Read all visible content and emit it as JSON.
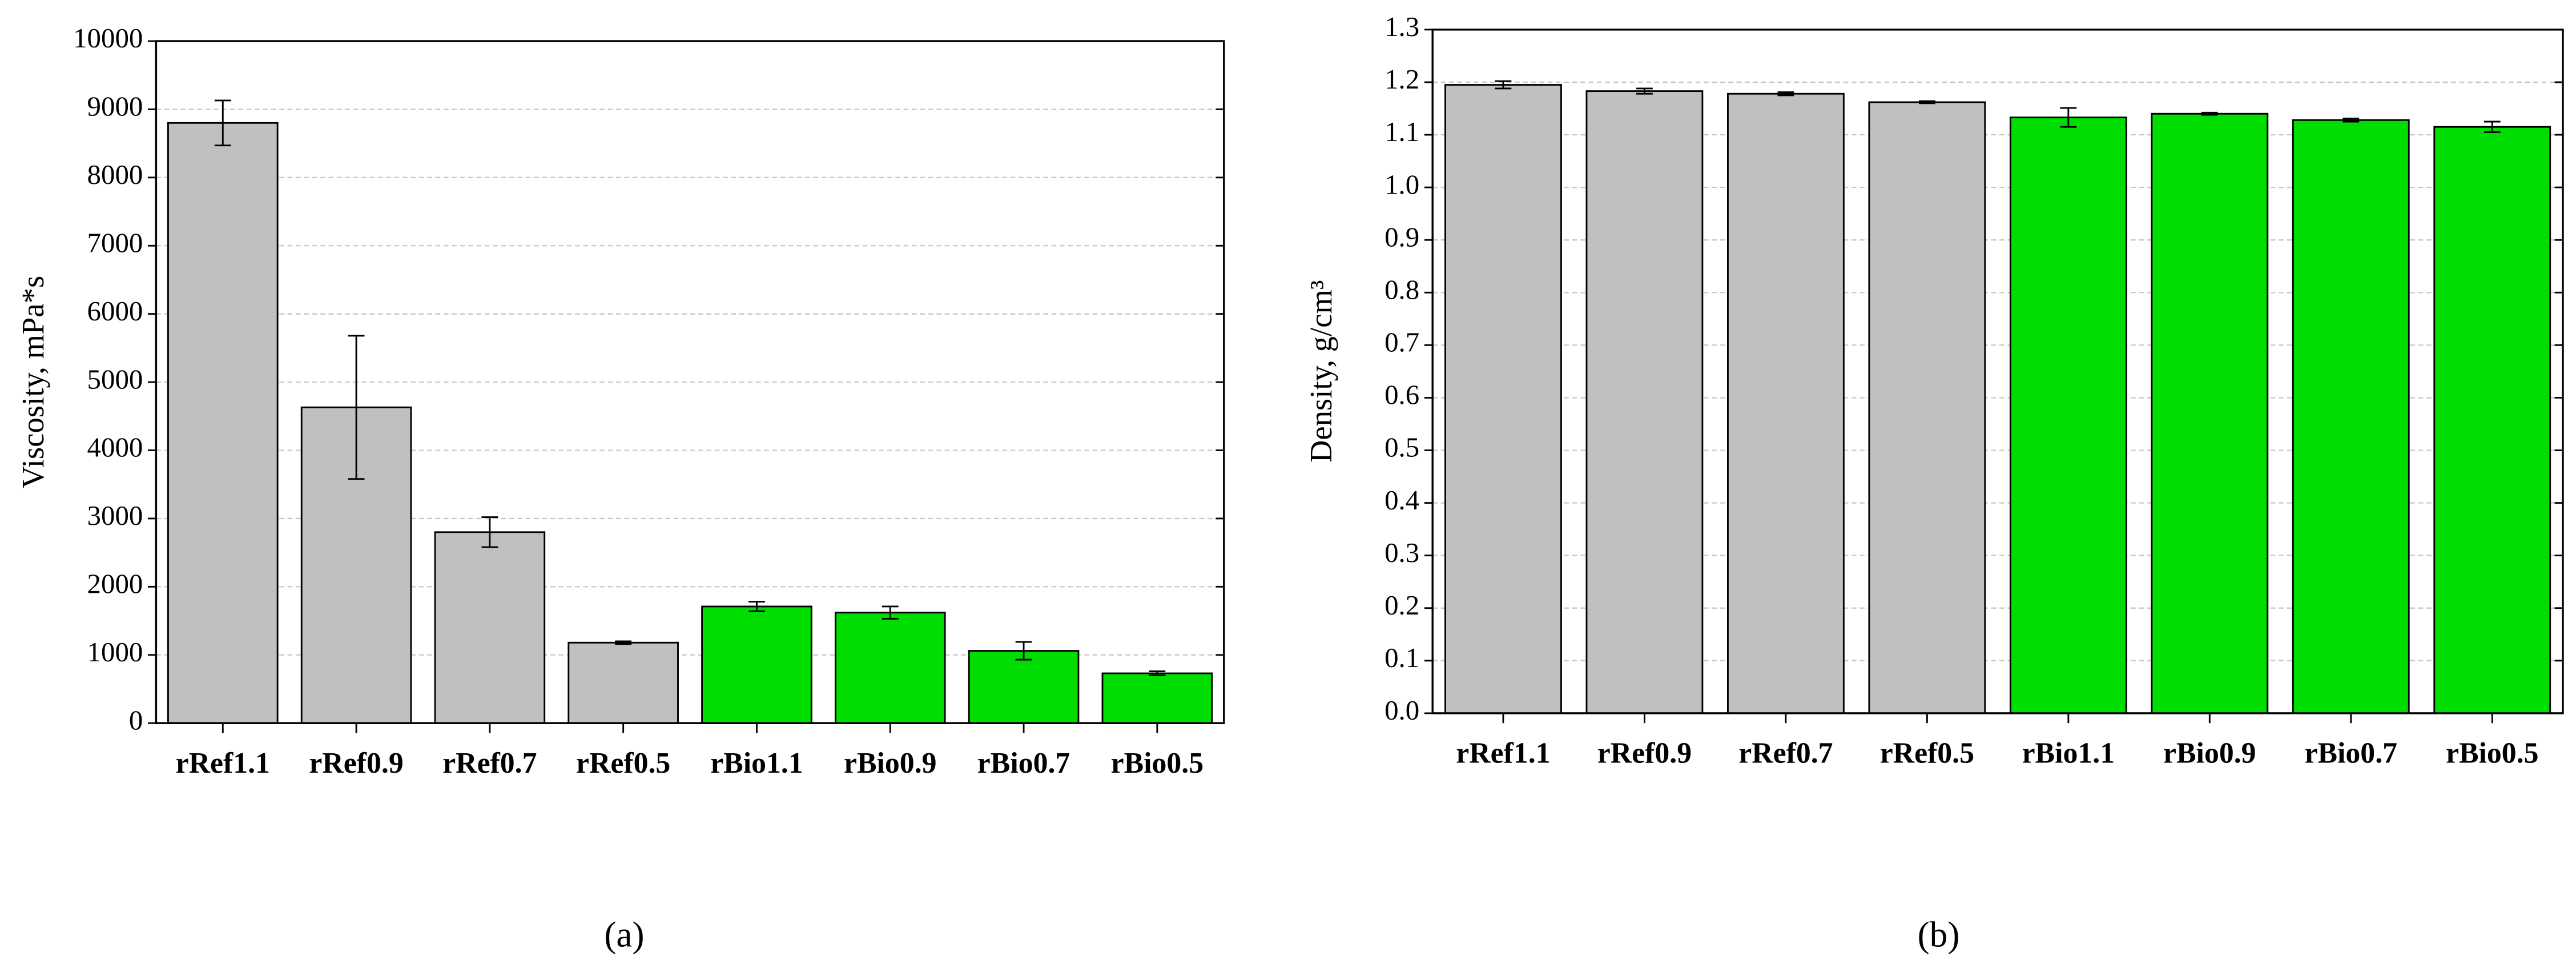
{
  "chart_data": [
    {
      "type": "bar",
      "caption": "(a)",
      "ylabel": "Viscosity, mPa*s",
      "categories": [
        "rRef1.1",
        "rRef0.9",
        "rRef0.7",
        "rRef0.5",
        "rBio1.1",
        "rBio0.9",
        "rBio0.7",
        "rBio0.5"
      ],
      "values": [
        8800,
        4630,
        2800,
        1180,
        1710,
        1620,
        1060,
        730
      ],
      "errors": [
        330,
        1050,
        220,
        20,
        70,
        90,
        130,
        30
      ],
      "colors": [
        "#c0c0c0",
        "#c0c0c0",
        "#c0c0c0",
        "#c0c0c0",
        "#00dd00",
        "#00dd00",
        "#00dd00",
        "#00dd00"
      ],
      "ylim": [
        0,
        10000
      ],
      "yticks": [
        0,
        1000,
        2000,
        3000,
        4000,
        5000,
        6000,
        7000,
        8000,
        9000,
        10000
      ],
      "grid": true
    },
    {
      "type": "bar",
      "caption": "(b)",
      "ylabel": "Density, g/cm³",
      "categories": [
        "rRef1.1",
        "rRef0.9",
        "rRef0.7",
        "rRef0.5",
        "rBio1.1",
        "rBio0.9",
        "rBio0.7",
        "rBio0.5"
      ],
      "values": [
        1.195,
        1.183,
        1.178,
        1.162,
        1.133,
        1.14,
        1.128,
        1.115
      ],
      "errors": [
        0.007,
        0.005,
        0.003,
        0.002,
        0.018,
        0.002,
        0.003,
        0.01
      ],
      "colors": [
        "#c0c0c0",
        "#c0c0c0",
        "#c0c0c0",
        "#c0c0c0",
        "#00dd00",
        "#00dd00",
        "#00dd00",
        "#00dd00"
      ],
      "ylim": [
        0,
        1.3
      ],
      "yticks": [
        {
          "value": 0,
          "label": "0.0"
        },
        0.1,
        0.2,
        0.3,
        0.4,
        0.5,
        0.6,
        0.7,
        0.8,
        0.9,
        {
          "value": 1,
          "label": "1.0"
        },
        1.1,
        1.2,
        1.3
      ],
      "grid": true
    }
  ]
}
